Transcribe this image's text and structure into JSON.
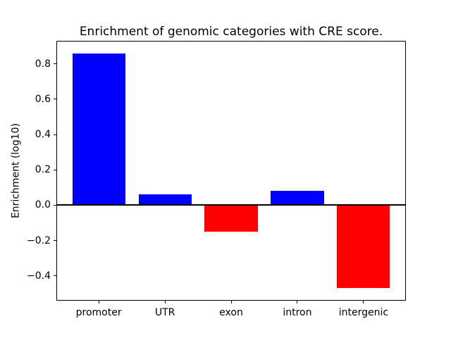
{
  "chart_data": {
    "type": "bar",
    "title": "Enrichment of genomic categories with CRE score.",
    "xlabel": "",
    "ylabel": "Enrichment (log10)",
    "categories": [
      "promoter",
      "UTR",
      "exon",
      "intron",
      "intergenic"
    ],
    "values": [
      0.86,
      0.06,
      -0.15,
      0.08,
      -0.47
    ],
    "bar_colors": [
      "#0000ff",
      "#0000ff",
      "#ff0000",
      "#0000ff",
      "#ff0000"
    ],
    "positive_color": "#0000ff",
    "negative_color": "#ff0000",
    "yticks": [
      0.8,
      0.6,
      0.4,
      0.2,
      0.0,
      -0.2,
      -0.4
    ],
    "ylim": [
      -0.54,
      0.93
    ],
    "xlim": [
      -0.64,
      4.64
    ],
    "bar_width_data_units": 0.8,
    "zero_line": true,
    "grid": false,
    "legend": "none",
    "spine_color": "#000000",
    "background_color": "#ffffff"
  }
}
